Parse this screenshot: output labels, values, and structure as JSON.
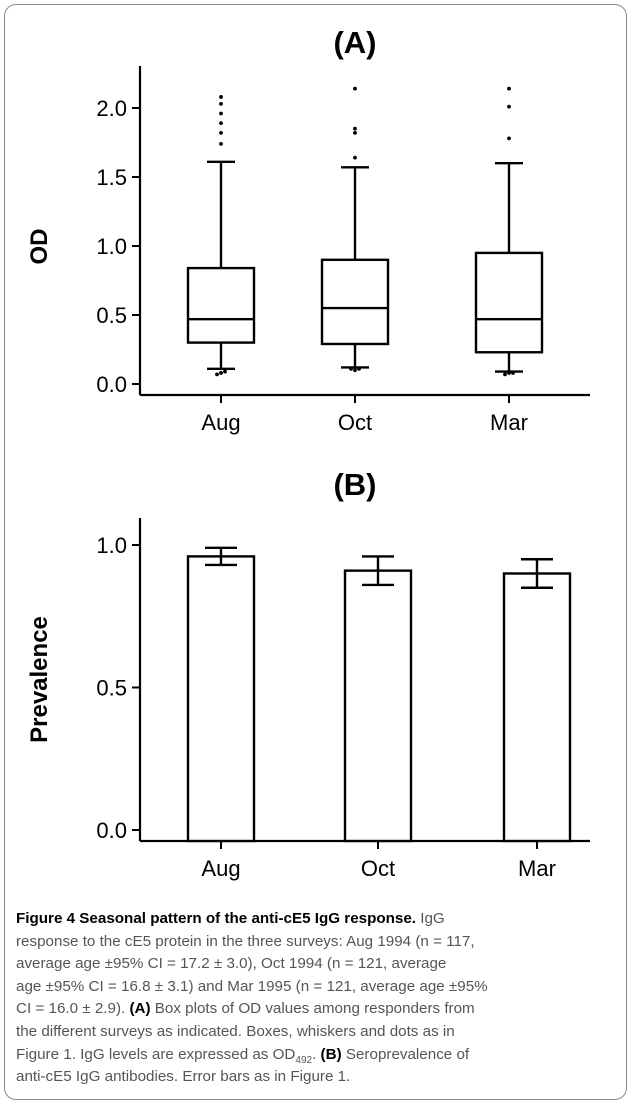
{
  "chart_data": [
    {
      "type": "box",
      "title": "(A)",
      "xlabel": "",
      "ylabel": "OD",
      "ylim": [
        0,
        2.2
      ],
      "yticks": [
        0.0,
        0.5,
        1.0,
        1.5,
        2.0
      ],
      "ytick_labels": [
        "0.0",
        "0.5",
        "1.0",
        "1.5",
        "2.0"
      ],
      "categories": [
        "Aug",
        "Oct",
        "Mar"
      ],
      "boxes": [
        {
          "q1": 0.3,
          "median": 0.47,
          "q3": 0.84,
          "whisker_low": 0.11,
          "whisker_high": 1.61,
          "outliers": [
            1.74,
            1.82,
            1.89,
            1.96,
            2.03,
            2.08,
            0.07,
            0.08,
            0.09
          ]
        },
        {
          "q1": 0.29,
          "median": 0.55,
          "q3": 0.9,
          "whisker_low": 0.12,
          "whisker_high": 1.57,
          "outliers": [
            1.64,
            1.82,
            1.85,
            2.14,
            0.1,
            0.11,
            0.11
          ]
        },
        {
          "q1": 0.23,
          "median": 0.47,
          "q3": 0.95,
          "whisker_low": 0.09,
          "whisker_high": 1.6,
          "outliers": [
            1.78,
            2.01,
            2.14,
            0.07,
            0.08,
            0.08
          ]
        }
      ],
      "grid": false
    },
    {
      "type": "bar",
      "title": "(B)",
      "xlabel": "",
      "ylabel": "Prevalence",
      "ylim": [
        0,
        1.1
      ],
      "yticks": [
        0.0,
        0.5,
        1.0
      ],
      "ytick_labels": [
        "0.0",
        "0.5",
        "1.0"
      ],
      "categories": [
        "Aug",
        "Oct",
        "Mar"
      ],
      "values": [
        0.96,
        0.91,
        0.9
      ],
      "error_low": [
        0.93,
        0.86,
        0.85
      ],
      "error_high": [
        0.99,
        0.96,
        0.95
      ],
      "grid": false
    }
  ],
  "caption": {
    "label": "Figure 4 Seasonal pattern of the anti-cE5 IgG response.",
    "lines": [
      [
        {
          "t": " IgG"
        }
      ],
      [
        {
          "t": "response to the cE5 protein in the three surveys: Aug 1994 (n = 117,"
        }
      ],
      [
        {
          "t": "average age ±95% CI = 17.2 ± 3.0), Oct 1994 (n = 121, average"
        }
      ],
      [
        {
          "t": "age ±95% CI = 16.8 ± 3.1) and Mar 1995 (n = 121, average age ±95%"
        }
      ],
      [
        {
          "t": "CI = 16.0 ± 2.9). "
        },
        {
          "t": "(A)",
          "b": true
        },
        {
          "t": " Box plots of OD values among responders from"
        }
      ],
      [
        {
          "t": "the different surveys as indicated. Boxes, whiskers and dots as in"
        }
      ],
      [
        {
          "t": "Figure 1. IgG levels are expressed as OD"
        },
        {
          "t": "492",
          "sub": true
        },
        {
          "t": ". "
        },
        {
          "t": "(B)",
          "b": true
        },
        {
          "t": " Seroprevalence of"
        }
      ],
      [
        {
          "t": "anti-cE5 IgG antibodies. Error bars as in Figure 1."
        }
      ]
    ]
  }
}
